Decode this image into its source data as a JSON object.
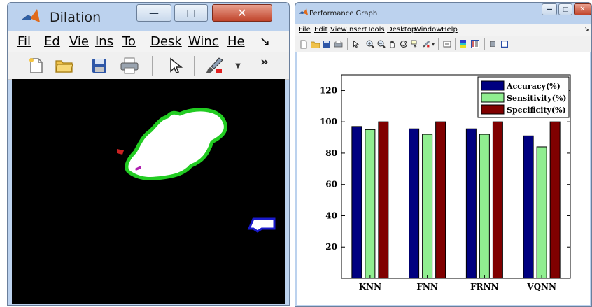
{
  "left_window": {
    "title": "Dilation",
    "app_icon": "matlab-logo-icon",
    "controls": {
      "minimize": "—",
      "maximize": "□",
      "close": "✕"
    },
    "menu": [
      "Fil",
      "Ed",
      "Vie",
      "Ins",
      "To",
      "Desk",
      "Winc",
      "He",
      "↘"
    ],
    "toolbar_icons": [
      "new-file-icon",
      "open-folder-icon",
      "save-icon",
      "print-icon",
      "pointer-icon",
      "brush-icon",
      "dropdown-icon",
      "overflow-icon"
    ],
    "overflow": "»",
    "image_colors": {
      "background": "#000000",
      "region_fill": "#ffffff",
      "boundary": "#22cc22",
      "artifact_red": "#cc2222",
      "artifact_blue": "#1a1acc"
    }
  },
  "right_window": {
    "title": "Performance Graph",
    "app_icon": "matlab-logo-icon",
    "controls": {
      "minimize": "—",
      "maximize": "□",
      "close": "✕"
    },
    "menu": [
      "File",
      "Edit",
      "View",
      "Insert",
      "Tools",
      "Desktop",
      "Window",
      "Help"
    ],
    "menu_arrow": "↘",
    "toolbar_icons": [
      "new-icon",
      "open-icon",
      "save-icon",
      "print-icon",
      "pointer-icon",
      "zoom-in-icon",
      "zoom-out-icon",
      "pan-icon",
      "rotate-icon",
      "data-cursor-icon",
      "brush-icon",
      "link-icon",
      "colorbar-icon",
      "legend-icon",
      "hide-tools-icon",
      "show-tools-icon"
    ]
  },
  "chart_data": {
    "type": "bar",
    "categories": [
      "KNN",
      "FNN",
      "FRNN",
      "VQNN"
    ],
    "series": [
      {
        "name": "Accuracy(%)",
        "values": [
          97,
          95.5,
          95.5,
          91
        ],
        "color": "#000080"
      },
      {
        "name": "Sensitivity(%)",
        "values": [
          95,
          92,
          92,
          84
        ],
        "color": "#90ee90"
      },
      {
        "name": "Specificity(%)",
        "values": [
          100,
          100,
          100,
          100
        ],
        "color": "#800000"
      }
    ],
    "ylim": [
      0,
      130
    ],
    "yticks": [
      20,
      40,
      60,
      80,
      100,
      120
    ],
    "legend_position": "top-right",
    "grid": false,
    "title": "",
    "xlabel": "",
    "ylabel": ""
  }
}
